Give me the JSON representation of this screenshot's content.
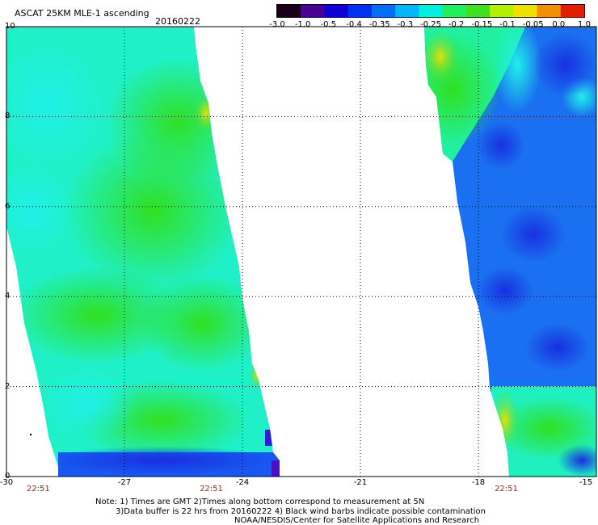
{
  "header": {
    "title": "ASCAT 25KM MLE-1 ascending",
    "date": "20160222"
  },
  "colorbar": {
    "labels": [
      "-3.0",
      "-1.0",
      "-0.5",
      "-0.4",
      "-0.35",
      "-0.3",
      "-0.25",
      "-0.2",
      "-0.15",
      "-0.1",
      "-0.05",
      "0.0",
      "1.0"
    ],
    "colors": [
      "#180018",
      "#4a0090",
      "#1000d8",
      "#0030f0",
      "#0070f8",
      "#00b8f8",
      "#00f0e0",
      "#20f060",
      "#40e020",
      "#b0f000",
      "#f0e000",
      "#f09000",
      "#e02000"
    ]
  },
  "axes": {
    "x_ticks": [
      {
        "value": -30,
        "label": "-30"
      },
      {
        "value": -27,
        "label": "-27"
      },
      {
        "value": -24,
        "label": "-24"
      },
      {
        "value": -21,
        "label": "-21"
      },
      {
        "value": -18,
        "label": "-18"
      },
      {
        "value": -15,
        "label": "-15"
      }
    ],
    "y_ticks": [
      {
        "value": 0,
        "label": "0"
      },
      {
        "value": 2,
        "label": "2"
      },
      {
        "value": 4,
        "label": "4"
      },
      {
        "value": 6,
        "label": "6"
      },
      {
        "value": 8,
        "label": "8"
      },
      {
        "value": 10,
        "label": "10"
      }
    ],
    "lon_range": [
      -30,
      -15
    ],
    "lat_range": [
      0,
      10
    ],
    "grid": "dotted"
  },
  "pass_times": [
    {
      "label": "22:51",
      "lon": -29.2
    },
    {
      "label": "22:51",
      "lon": -24.8
    },
    {
      "label": "22:51",
      "lon": -17.3
    }
  ],
  "notes": {
    "line1": "Note: 1) Times are GMT 2)Times along bottom correspond to measurement at 5N",
    "line2": "3)Data buffer is 22 hrs from 20160222 4) Black wind barbs indicate possible contamination",
    "line3": "NOAA/NESDIS/Center for Satellite Applications and Research"
  }
}
